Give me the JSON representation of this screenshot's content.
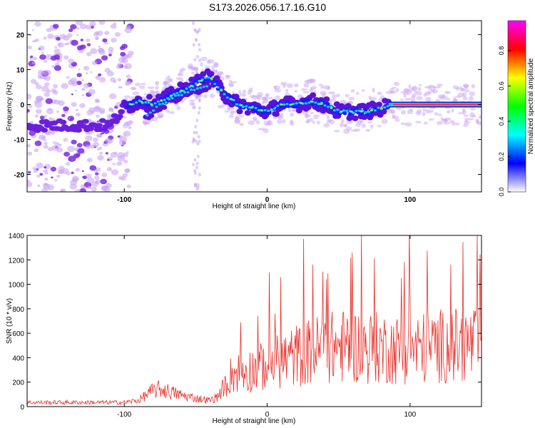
{
  "figure": {
    "title": "S173.2026.056.17.16.G10"
  },
  "chart_data": [
    {
      "type": "heatmap",
      "name": "spectrogram",
      "xlabel": "Height of straight line (km)",
      "ylabel": "Frequency (Hz)",
      "xlim": [
        -168,
        150
      ],
      "ylim": [
        -25,
        24
      ],
      "x_ticks": [
        -100,
        0,
        100
      ],
      "y_ticks": [
        -20,
        -10,
        0,
        10,
        20
      ],
      "colorbar": {
        "label": "Normalized spectral amplitude",
        "range": [
          0,
          0.97
        ],
        "ticks": [
          "0.0",
          "0.2",
          "0.4",
          "0.6",
          "0.8"
        ],
        "colors": [
          "#ffffff",
          "#0000ff",
          "#00ffff",
          "#00ff00",
          "#ffff00",
          "#ff0000",
          "#ff00ff"
        ]
      },
      "ridge": [
        [
          -168,
          -6
        ],
        [
          -150,
          -6
        ],
        [
          -130,
          -6
        ],
        [
          -110,
          -6
        ],
        [
          -100,
          -1
        ],
        [
          -90,
          1
        ],
        [
          -80,
          0
        ],
        [
          -70,
          2
        ],
        [
          -60,
          4
        ],
        [
          -50,
          6
        ],
        [
          -40,
          8
        ],
        [
          -30,
          3
        ],
        [
          -20,
          0
        ],
        [
          -10,
          -1
        ],
        [
          0,
          -2
        ],
        [
          10,
          0
        ],
        [
          20,
          0
        ],
        [
          30,
          1
        ],
        [
          40,
          0
        ],
        [
          50,
          -2
        ],
        [
          60,
          -2
        ],
        [
          70,
          -2
        ],
        [
          80,
          -1
        ],
        [
          90,
          0
        ],
        [
          100,
          0
        ],
        [
          120,
          0
        ],
        [
          150,
          0
        ]
      ],
      "secondary_ridge": [
        [
          -85,
          -3
        ],
        [
          -75,
          0
        ],
        [
          -65,
          2
        ],
        [
          -55,
          4
        ],
        [
          -45,
          5
        ],
        [
          -40,
          6
        ]
      ]
    },
    {
      "type": "line",
      "name": "snr",
      "xlabel": "Height of straight line (km)",
      "ylabel": "SNR (10 * v/v)",
      "xlim": [
        -168,
        150
      ],
      "ylim": [
        0,
        1400
      ],
      "x_ticks": [
        -100,
        0,
        100
      ],
      "y_ticks": [
        0,
        200,
        400,
        600,
        800,
        1000,
        1200,
        1400
      ],
      "color": "#e8302a",
      "envelope": [
        [
          -168,
          40
        ],
        [
          -100,
          40
        ],
        [
          -90,
          60
        ],
        [
          -85,
          110
        ],
        [
          -80,
          150
        ],
        [
          -75,
          170
        ],
        [
          -70,
          150
        ],
        [
          -60,
          110
        ],
        [
          -50,
          80
        ],
        [
          -40,
          60
        ],
        [
          -35,
          90
        ],
        [
          -30,
          200
        ],
        [
          -25,
          330
        ],
        [
          -20,
          350
        ],
        [
          -10,
          380
        ],
        [
          0,
          420
        ],
        [
          10,
          470
        ],
        [
          20,
          520
        ],
        [
          30,
          560
        ],
        [
          40,
          600
        ],
        [
          50,
          610
        ],
        [
          60,
          620
        ],
        [
          70,
          600
        ],
        [
          80,
          600
        ],
        [
          90,
          580
        ],
        [
          100,
          580
        ],
        [
          110,
          600
        ],
        [
          120,
          620
        ],
        [
          130,
          620
        ],
        [
          140,
          630
        ],
        [
          150,
          640
        ]
      ]
    }
  ]
}
